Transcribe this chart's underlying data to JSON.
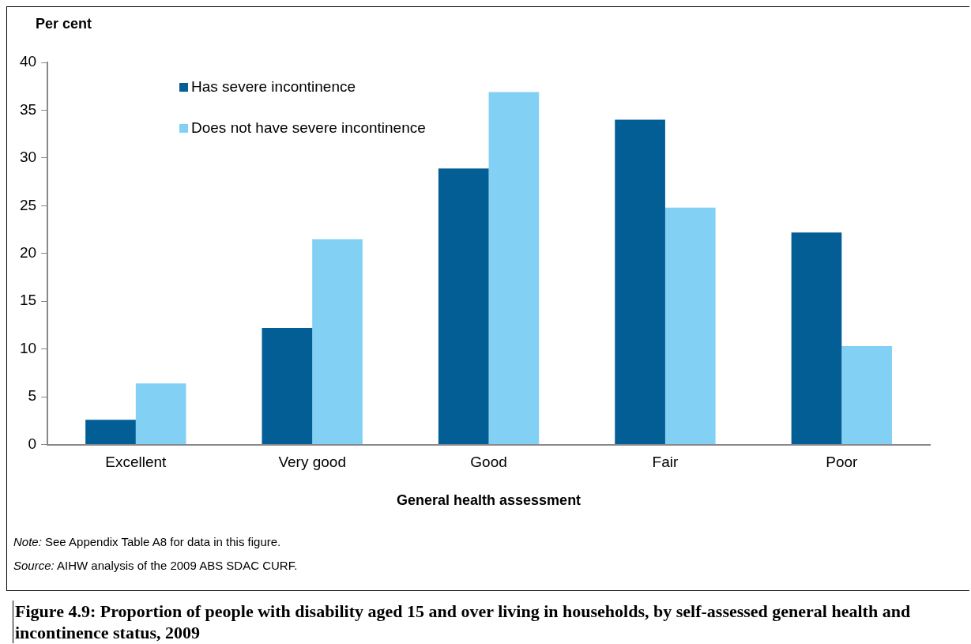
{
  "chart_data": {
    "type": "bar",
    "title": "Figure 4.9: Proportion of people with disability aged 15 and over living in households, by self-assessed general health and incontinence status, 2009",
    "xlabel": "General health assessment",
    "ylabel": "Per cent",
    "categories": [
      "Excellent",
      "Very good",
      "Good",
      "Fair",
      "Poor"
    ],
    "series": [
      {
        "name": "Has severe incontinence",
        "color": "#025e94",
        "values": [
          2.6,
          12.2,
          28.9,
          34.0,
          22.2
        ]
      },
      {
        "name": "Does not have severe incontinence",
        "color": "#83d0f5",
        "values": [
          6.4,
          21.5,
          36.9,
          24.8,
          10.3
        ]
      }
    ],
    "ylim": [
      0,
      40
    ],
    "yticks": [
      0,
      5,
      10,
      15,
      20,
      25,
      30,
      35,
      40
    ],
    "grid": false,
    "legend": "top left",
    "annotations": [
      "Note: See Appendix Table A8 for data in this figure.",
      "Source: AIHW analysis of the 2009 ABS SDAC CURF."
    ]
  }
}
